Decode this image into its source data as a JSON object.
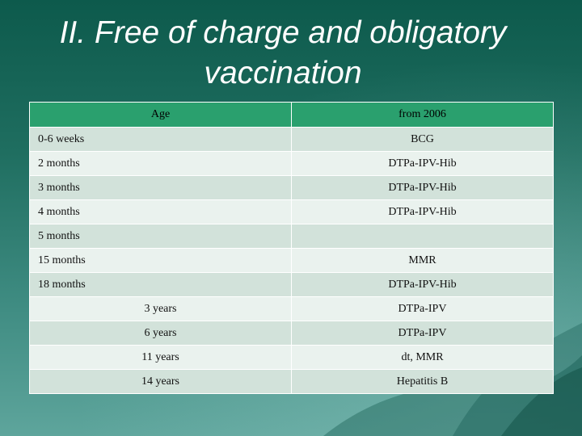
{
  "title_line1": "II. Free of charge and obligatory",
  "title_line2": "vaccination",
  "table": {
    "headers": [
      "Age",
      "from 2006"
    ],
    "rows": [
      {
        "age": "0-6 weeks",
        "vaccine": "BCG"
      },
      {
        "age": "2 months",
        "vaccine": "DTPa-IPV-Hib"
      },
      {
        "age": "3 months",
        "vaccine": "DTPa-IPV-Hib"
      },
      {
        "age": "4 months",
        "vaccine": "DTPa-IPV-Hib"
      },
      {
        "age": "5 months",
        "vaccine": ""
      },
      {
        "age": "15 months",
        "vaccine": "MMR"
      },
      {
        "age": "18 months",
        "vaccine": "DTPa-IPV-Hib"
      },
      {
        "age": "3 years",
        "vaccine": "DTPa-IPV"
      },
      {
        "age": "6 years",
        "vaccine": "DTPa-IPV"
      },
      {
        "age": "11 years",
        "vaccine": "dt,  MMR"
      },
      {
        "age": "14 years",
        "vaccine": "Hepatitis B"
      }
    ]
  }
}
